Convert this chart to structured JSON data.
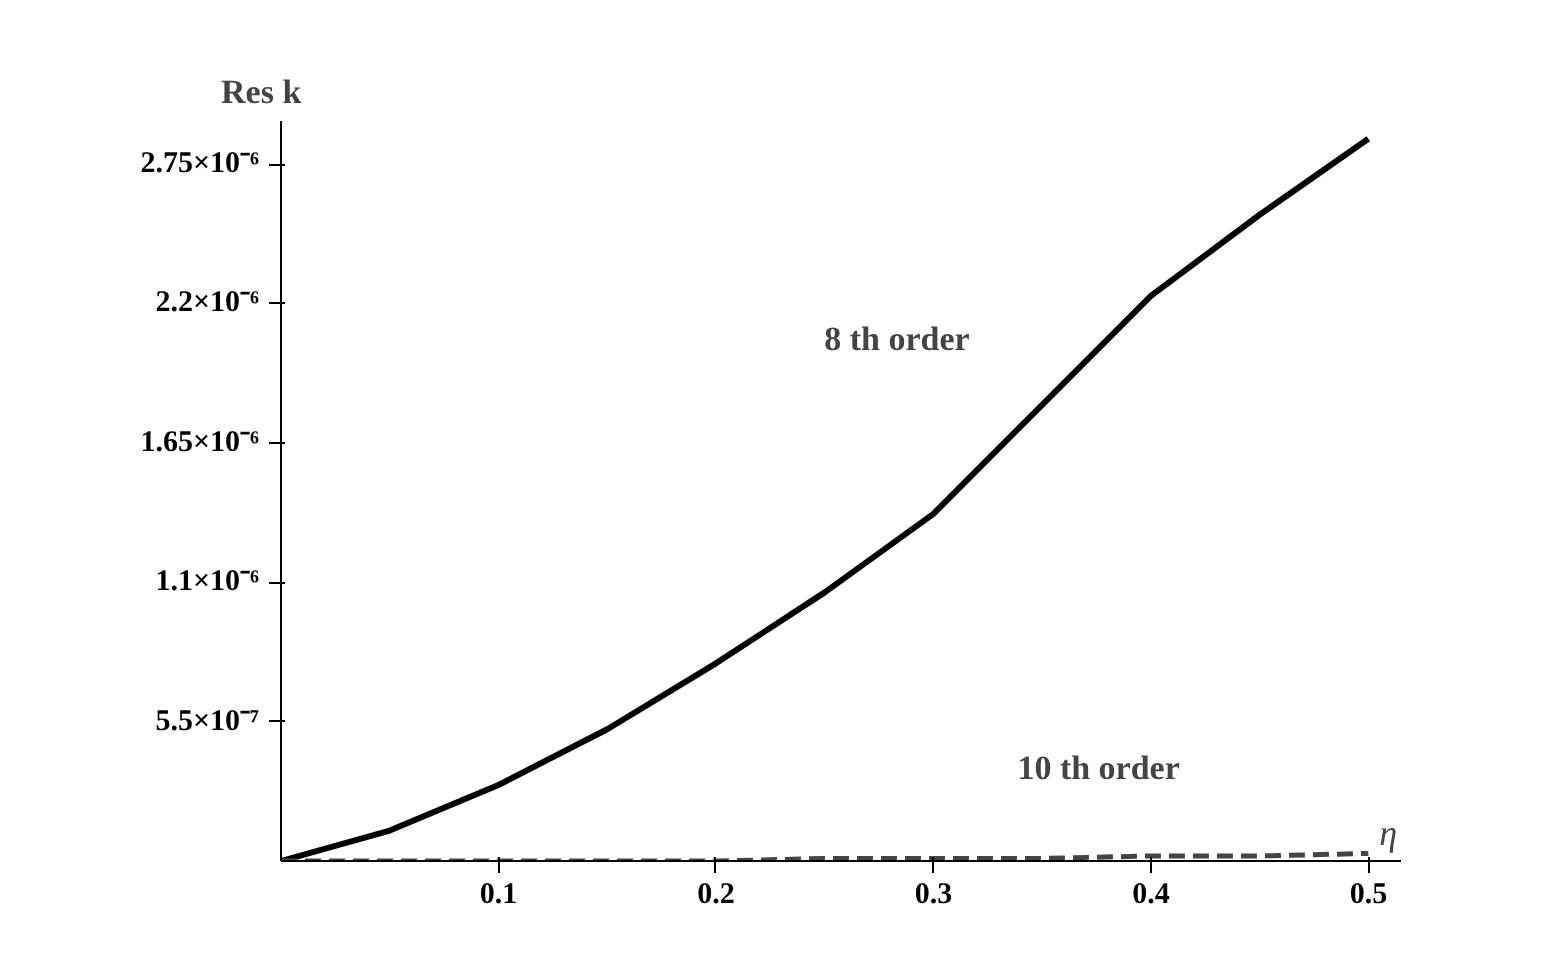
{
  "chart_data": {
    "type": "line",
    "xlabel": "η",
    "ylabel": "Res k",
    "x": [
      0,
      0.05,
      0.1,
      0.15,
      0.2,
      0.25,
      0.3,
      0.35,
      0.4,
      0.45,
      0.5
    ],
    "series": [
      {
        "name": "8 th order",
        "color": "#000000",
        "line_style": "solid",
        "values": [
          0,
          1.2e-07,
          3e-07,
          5.2e-07,
          7.8e-07,
          1.06e-06,
          1.37e-06,
          1.8e-06,
          2.23e-06,
          2.55e-06,
          2.85e-06
        ]
      },
      {
        "name": "10 th order",
        "color": "#444444",
        "line_style": "dashed",
        "values": [
          0,
          0,
          0,
          0,
          0,
          1e-08,
          1e-08,
          1e-08,
          2e-08,
          2e-08,
          3e-08
        ]
      }
    ],
    "xlim": [
      0,
      0.515
    ],
    "ylim": [
      0,
      2.92e-06
    ],
    "xticks": [
      0.1,
      0.2,
      0.3,
      0.4,
      0.5
    ],
    "yticks": [
      {
        "value": 5.5e-07,
        "label": "5.5×10⁻⁷"
      },
      {
        "value": 1.1e-06,
        "label": "1.1×10⁻⁶"
      },
      {
        "value": 1.65e-06,
        "label": "1.65×10⁻⁶"
      },
      {
        "value": 2.2e-06,
        "label": "2.2×10⁻⁶"
      },
      {
        "value": 2.75e-06,
        "label": "2.75×10⁻⁶"
      }
    ],
    "grid": false,
    "legend": false,
    "marker": "none"
  }
}
